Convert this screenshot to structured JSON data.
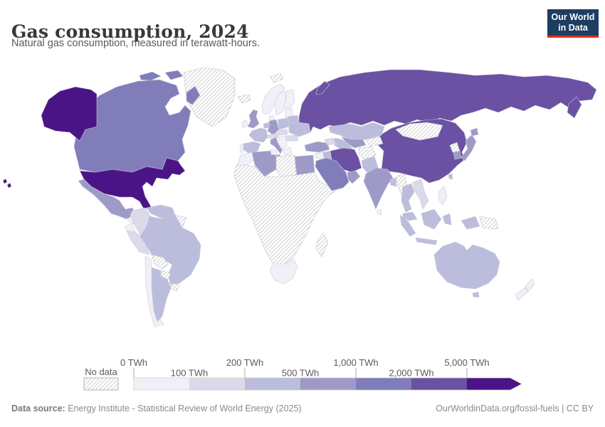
{
  "header": {
    "title": "Gas consumption, 2024",
    "subtitle": "Natural gas consumption, measured in terawatt-hours.",
    "logo": {
      "line1": "Our World",
      "line2": "in Data",
      "bg_color": "#1d3d63",
      "accent_color": "#e0301e"
    }
  },
  "footer": {
    "source_label": "Data source:",
    "source_value": " Energy Institute - Statistical Review of World Energy (2025)",
    "link": "OurWorldinData.org/fossil-fuels | CC BY"
  },
  "chart_data": {
    "type": "choropleth",
    "title": "Gas consumption, 2024",
    "subtitle": "Natural gas consumption, measured in terawatt-hours.",
    "unit": "TWh",
    "legend": {
      "no_data_label": "No data",
      "no_data_pattern": "diagonal-hatch",
      "bins": [
        {
          "id": "0-100",
          "min_label": "0 TWh",
          "color": "#f2f0f7"
        },
        {
          "id": "100-200",
          "min_label": "100 TWh",
          "color": "#dadaeb"
        },
        {
          "id": "200-500",
          "min_label": "200 TWh",
          "color": "#bcbddc"
        },
        {
          "id": "500-1000",
          "min_label": "500 TWh",
          "color": "#9e9ac8"
        },
        {
          "id": "1000-2000",
          "min_label": "1,000 TWh",
          "color": "#807dba"
        },
        {
          "id": "2000-5000",
          "min_label": "2,000 TWh",
          "color": "#6a51a3"
        },
        {
          "id": "5000+",
          "min_label": "5,000 TWh",
          "color": "#4a1486"
        }
      ]
    },
    "countries": [
      {
        "id": "russia",
        "name": "Russia",
        "bin": "2000-5000"
      },
      {
        "id": "novaya-zemlya",
        "name": "Russia",
        "bin": "2000-5000"
      },
      {
        "id": "kamchatka",
        "name": "Russia",
        "bin": "2000-5000"
      },
      {
        "id": "china",
        "name": "China",
        "bin": "2000-5000"
      },
      {
        "id": "africa-subsaharan",
        "name": "Sub-Saharan Africa",
        "bin": "no-data"
      },
      {
        "id": "greenland",
        "name": "Greenland",
        "bin": "no-data"
      },
      {
        "id": "iceland",
        "name": "Iceland",
        "bin": "no-data"
      },
      {
        "id": "svalbard",
        "name": "Svalbard",
        "bin": "no-data"
      },
      {
        "id": "canada",
        "name": "Canada",
        "bin": "1000-2000"
      },
      {
        "id": "canada-arctic-1",
        "name": "Canada",
        "bin": "1000-2000"
      },
      {
        "id": "canada-arctic-2",
        "name": "Canada",
        "bin": "1000-2000"
      },
      {
        "id": "canada-baffin",
        "name": "Canada",
        "bin": "1000-2000"
      },
      {
        "id": "alaska",
        "name": "United States",
        "bin": "5000+"
      },
      {
        "id": "usa",
        "name": "United States",
        "bin": "5000+"
      },
      {
        "id": "hawaii-1",
        "name": "United States",
        "bin": "5000+"
      },
      {
        "id": "hawaii-2",
        "name": "United States",
        "bin": "5000+"
      },
      {
        "id": "mexico",
        "name": "Mexico",
        "bin": "500-1000"
      },
      {
        "id": "central-america",
        "name": "Central America",
        "bin": "0-100"
      },
      {
        "id": "cuba",
        "name": "Cuba",
        "bin": "no-data"
      },
      {
        "id": "hispaniola",
        "name": "Hispaniola",
        "bin": "no-data"
      },
      {
        "id": "colombia",
        "name": "Colombia",
        "bin": "100-200"
      },
      {
        "id": "venezuela",
        "name": "Venezuela",
        "bin": "200-500"
      },
      {
        "id": "guyanas",
        "name": "Guyana/Suriname",
        "bin": "no-data"
      },
      {
        "id": "ecuador",
        "name": "Ecuador",
        "bin": "0-100"
      },
      {
        "id": "peru",
        "name": "Peru",
        "bin": "100-200"
      },
      {
        "id": "brazil",
        "name": "Brazil",
        "bin": "200-500"
      },
      {
        "id": "bolivia",
        "name": "Bolivia",
        "bin": "no-data"
      },
      {
        "id": "paraguay",
        "name": "Paraguay",
        "bin": "no-data"
      },
      {
        "id": "chile",
        "name": "Chile",
        "bin": "0-100"
      },
      {
        "id": "argentina",
        "name": "Argentina",
        "bin": "200-500"
      },
      {
        "id": "uruguay",
        "name": "Uruguay",
        "bin": "no-data"
      },
      {
        "id": "norway",
        "name": "Norway",
        "bin": "0-100"
      },
      {
        "id": "sweden",
        "name": "Sweden",
        "bin": "0-100"
      },
      {
        "id": "finland",
        "name": "Finland",
        "bin": "0-100"
      },
      {
        "id": "denmark",
        "name": "Denmark",
        "bin": "0-100"
      },
      {
        "id": "uk",
        "name": "United Kingdom",
        "bin": "500-1000"
      },
      {
        "id": "ireland",
        "name": "Ireland",
        "bin": "0-100"
      },
      {
        "id": "france",
        "name": "France",
        "bin": "200-500"
      },
      {
        "id": "spain",
        "name": "Spain",
        "bin": "200-500"
      },
      {
        "id": "portugal",
        "name": "Portugal",
        "bin": "0-100"
      },
      {
        "id": "benelux",
        "name": "Belgium/Netherlands",
        "bin": "200-500"
      },
      {
        "id": "germany",
        "name": "Germany",
        "bin": "500-1000"
      },
      {
        "id": "alpine",
        "name": "Switzerland/Austria",
        "bin": "100-200"
      },
      {
        "id": "italy",
        "name": "Italy",
        "bin": "500-1000"
      },
      {
        "id": "sicily",
        "name": "Italy",
        "bin": "500-1000"
      },
      {
        "id": "poland",
        "name": "Poland",
        "bin": "200-500"
      },
      {
        "id": "czech-slovakia-hungary",
        "name": "Czechia/Slovakia/Hungary",
        "bin": "100-200"
      },
      {
        "id": "baltics",
        "name": "Baltic states",
        "bin": "0-100"
      },
      {
        "id": "belarus",
        "name": "Belarus",
        "bin": "200-500"
      },
      {
        "id": "ukraine",
        "name": "Ukraine",
        "bin": "200-500"
      },
      {
        "id": "romania",
        "name": "Romania",
        "bin": "100-200"
      },
      {
        "id": "balkans",
        "name": "Balkans",
        "bin": "0-100"
      },
      {
        "id": "greece",
        "name": "Greece",
        "bin": "0-100"
      },
      {
        "id": "turkey",
        "name": "Turkiye",
        "bin": "500-1000"
      },
      {
        "id": "kazakhstan",
        "name": "Kazakhstan",
        "bin": "200-500"
      },
      {
        "id": "uzbekistan",
        "name": "Uzbekistan",
        "bin": "500-1000"
      },
      {
        "id": "turkmenistan",
        "name": "Turkmenistan",
        "bin": "200-500"
      },
      {
        "id": "kyrgyzstan-tajikistan",
        "name": "Kyrgyzstan/Tajikistan",
        "bin": "no-data"
      },
      {
        "id": "caucasus",
        "name": "Azerbaijan/Georgia",
        "bin": "100-200"
      },
      {
        "id": "iraq",
        "name": "Iraq",
        "bin": "200-500"
      },
      {
        "id": "iran",
        "name": "Iran",
        "bin": "2000-5000"
      },
      {
        "id": "afghanistan",
        "name": "Afghanistan",
        "bin": "no-data"
      },
      {
        "id": "pakistan",
        "name": "Pakistan",
        "bin": "200-500"
      },
      {
        "id": "syria",
        "name": "Syria/Jordan",
        "bin": "0-100"
      },
      {
        "id": "saudi-arabia",
        "name": "Saudi Arabia",
        "bin": "1000-2000"
      },
      {
        "id": "uae-oman",
        "name": "UAE/Oman",
        "bin": "500-1000"
      },
      {
        "id": "morocco",
        "name": "Morocco",
        "bin": "0-100"
      },
      {
        "id": "algeria",
        "name": "Algeria",
        "bin": "500-1000"
      },
      {
        "id": "tunisia",
        "name": "Tunisia",
        "bin": "0-100"
      },
      {
        "id": "libya",
        "name": "Libya",
        "bin": "no-data"
      },
      {
        "id": "egypt",
        "name": "Egypt",
        "bin": "500-1000"
      },
      {
        "id": "south-africa",
        "name": "South Africa",
        "bin": "0-100"
      },
      {
        "id": "madagascar",
        "name": "Madagascar",
        "bin": "no-data"
      },
      {
        "id": "pakistan2",
        "name": "Pakistan",
        "bin": "200-500"
      },
      {
        "id": "india",
        "name": "India",
        "bin": "500-1000"
      },
      {
        "id": "sri-lanka",
        "name": "Sri Lanka",
        "bin": "0-100"
      },
      {
        "id": "bangladesh",
        "name": "Bangladesh",
        "bin": "200-500"
      },
      {
        "id": "myanmar",
        "name": "Myanmar",
        "bin": "no-data"
      },
      {
        "id": "mongolia",
        "name": "Mongolia",
        "bin": "no-data"
      },
      {
        "id": "north-korea",
        "name": "North Korea",
        "bin": "no-data"
      },
      {
        "id": "south-korea",
        "name": "South Korea",
        "bin": "500-1000"
      },
      {
        "id": "japan",
        "name": "Japan",
        "bin": "500-1000"
      },
      {
        "id": "hokkaido",
        "name": "Japan",
        "bin": "500-1000"
      },
      {
        "id": "taiwan",
        "name": "Taiwan",
        "bin": "200-500"
      },
      {
        "id": "thailand",
        "name": "Thailand",
        "bin": "200-500"
      },
      {
        "id": "vietnam",
        "name": "Vietnam",
        "bin": "100-200"
      },
      {
        "id": "malaysia",
        "name": "Malaysia",
        "bin": "200-500"
      },
      {
        "id": "sumatra",
        "name": "Indonesia",
        "bin": "200-500"
      },
      {
        "id": "java",
        "name": "Indonesia",
        "bin": "200-500"
      },
      {
        "id": "borneo",
        "name": "Indonesia/Malaysia",
        "bin": "200-500"
      },
      {
        "id": "sulawesi",
        "name": "Indonesia",
        "bin": "200-500"
      },
      {
        "id": "west-papua",
        "name": "Indonesia",
        "bin": "200-500"
      },
      {
        "id": "png",
        "name": "Papua New Guinea",
        "bin": "no-data"
      },
      {
        "id": "philippines",
        "name": "Philippines",
        "bin": "0-100"
      },
      {
        "id": "australia",
        "name": "Australia",
        "bin": "200-500"
      },
      {
        "id": "tasmania",
        "name": "Australia",
        "bin": "200-500"
      },
      {
        "id": "nz-north",
        "name": "New Zealand",
        "bin": "0-100"
      },
      {
        "id": "nz-south",
        "name": "New Zealand",
        "bin": "0-100"
      }
    ]
  }
}
